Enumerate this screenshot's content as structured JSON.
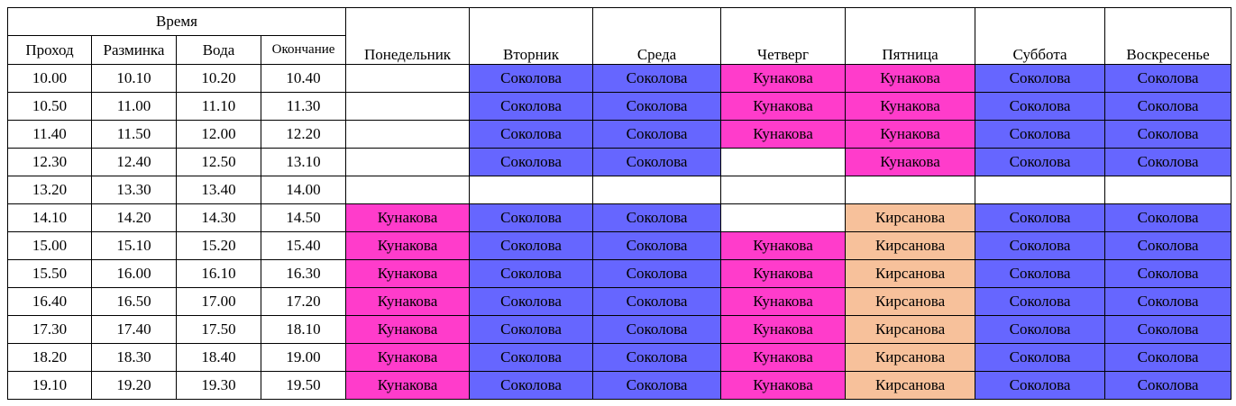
{
  "header": {
    "group_label": "Время",
    "time_columns": [
      "Проход",
      "Разминка",
      "Вода",
      "Окончание"
    ],
    "days": [
      "Понедельник",
      "Вторник",
      "Среда",
      "Четверг",
      "Пятница",
      "Суббота",
      "Воскресенье"
    ]
  },
  "colors": {
    "Соколова": "#6666ff",
    "Кунакова": "#ff3ccb",
    "Кирсанова": "#f7c19b",
    "empty": "#ffffff"
  },
  "rows": [
    {
      "times": [
        "10.00",
        "10.10",
        "10.20",
        "10.40"
      ],
      "cells": [
        "",
        "Соколова",
        "Соколова",
        "Кунакова",
        "Кунакова",
        "Соколова",
        "Соколова"
      ]
    },
    {
      "times": [
        "10.50",
        "11.00",
        "11.10",
        "11.30"
      ],
      "cells": [
        "",
        "Соколова",
        "Соколова",
        "Кунакова",
        "Кунакова",
        "Соколова",
        "Соколова"
      ]
    },
    {
      "times": [
        "11.40",
        "11.50",
        "12.00",
        "12.20"
      ],
      "cells": [
        "",
        "Соколова",
        "Соколова",
        "Кунакова",
        "Кунакова",
        "Соколова",
        "Соколова"
      ]
    },
    {
      "times": [
        "12.30",
        "12.40",
        "12.50",
        "13.10"
      ],
      "cells": [
        "",
        "Соколова",
        "Соколова",
        "",
        "Кунакова",
        "Соколова",
        "Соколова"
      ]
    },
    {
      "times": [
        "13.20",
        "13.30",
        "13.40",
        "14.00"
      ],
      "cells": [
        "",
        "",
        "",
        "",
        "",
        "",
        ""
      ]
    },
    {
      "times": [
        "14.10",
        "14.20",
        "14.30",
        "14.50"
      ],
      "cells": [
        "Кунакова",
        "Соколова",
        "Соколова",
        "",
        "Кирсанова",
        "Соколова",
        "Соколова"
      ]
    },
    {
      "times": [
        "15.00",
        "15.10",
        "15.20",
        "15.40"
      ],
      "cells": [
        "Кунакова",
        "Соколова",
        "Соколова",
        "Кунакова",
        "Кирсанова",
        "Соколова",
        "Соколова"
      ]
    },
    {
      "times": [
        "15.50",
        "16.00",
        "16.10",
        "16.30"
      ],
      "cells": [
        "Кунакова",
        "Соколова",
        "Соколова",
        "Кунакова",
        "Кирсанова",
        "Соколова",
        "Соколова"
      ]
    },
    {
      "times": [
        "16.40",
        "16.50",
        "17.00",
        "17.20"
      ],
      "cells": [
        "Кунакова",
        "Соколова",
        "Соколова",
        "Кунакова",
        "Кирсанова",
        "Соколова",
        "Соколова"
      ]
    },
    {
      "times": [
        "17.30",
        "17.40",
        "17.50",
        "18.10"
      ],
      "cells": [
        "Кунакова",
        "Соколова",
        "Соколова",
        "Кунакова",
        "Кирсанова",
        "Соколова",
        "Соколова"
      ]
    },
    {
      "times": [
        "18.20",
        "18.30",
        "18.40",
        "19.00"
      ],
      "cells": [
        "Кунакова",
        "Соколова",
        "Соколова",
        "Кунакова",
        "Кирсанова",
        "Соколова",
        "Соколова"
      ]
    },
    {
      "times": [
        "19.10",
        "19.20",
        "19.30",
        "19.50"
      ],
      "cells": [
        "Кунакова",
        "Соколова",
        "Соколова",
        "Кунакова",
        "Кирсанова",
        "Соколова",
        "Соколова"
      ]
    }
  ]
}
